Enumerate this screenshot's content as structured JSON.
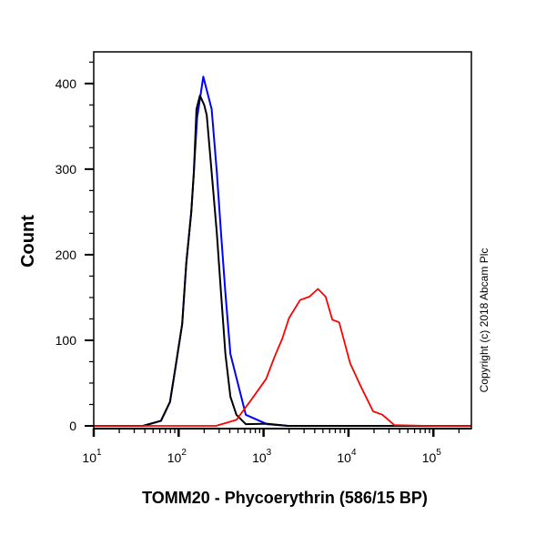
{
  "chart_data": {
    "type": "line",
    "xlabel": "TOMM20 - Phycoerythrin (586/15 BP)",
    "ylabel": "Count",
    "x_scale": "log",
    "xlim": [
      10,
      280000
    ],
    "ylim": [
      0,
      437
    ],
    "x_ticks": [
      {
        "base": "10",
        "exp": "1",
        "value": 10
      },
      {
        "base": "10",
        "exp": "2",
        "value": 100
      },
      {
        "base": "10",
        "exp": "3",
        "value": 1000
      },
      {
        "base": "10",
        "exp": "4",
        "value": 10000
      },
      {
        "base": "10",
        "exp": "5",
        "value": 100000
      }
    ],
    "y_ticks": [
      "0",
      "100",
      "200",
      "300",
      "400"
    ],
    "grid": false,
    "annotation": "Copyright (c) 2018 Abcam Plc",
    "series": [
      {
        "color": "#0000ff",
        "x": [
          10,
          38,
          62,
          79,
          91,
          110,
          123,
          141,
          151,
          165,
          195,
          245,
          282,
          316,
          355,
          407,
          617,
          1096,
          1950,
          10000,
          280000
        ],
        "y": [
          0,
          0,
          6,
          28,
          66,
          119,
          190,
          250,
          296,
          360,
          408,
          370,
          296,
          225,
          155,
          84,
          13,
          2,
          0,
          0,
          0
        ]
      },
      {
        "color": "#000000",
        "x": [
          10,
          38,
          62,
          79,
          91,
          110,
          123,
          141,
          151,
          162,
          178,
          200,
          214,
          245,
          282,
          316,
          355,
          407,
          479,
          617,
          1096,
          1950,
          10000,
          280000
        ],
        "y": [
          0,
          0,
          6,
          28,
          66,
          119,
          190,
          250,
          296,
          370,
          386,
          375,
          363,
          296,
          225,
          155,
          84,
          34,
          13,
          2,
          2.5,
          0,
          0,
          0
        ]
      },
      {
        "color": "#ff0000",
        "x": [
          10,
          275,
          479,
          724,
          1072,
          1349,
          1660,
          1995,
          2692,
          3467,
          4365,
          5370,
          6457,
          7762,
          10470,
          14125,
          19498,
          25119,
          34674,
          85114,
          280000
        ],
        "y": [
          0,
          0,
          7,
          31,
          55,
          81,
          102,
          126,
          147,
          151,
          160,
          151,
          124,
          121,
          73,
          45,
          17,
          13,
          1,
          0,
          0
        ]
      }
    ]
  }
}
